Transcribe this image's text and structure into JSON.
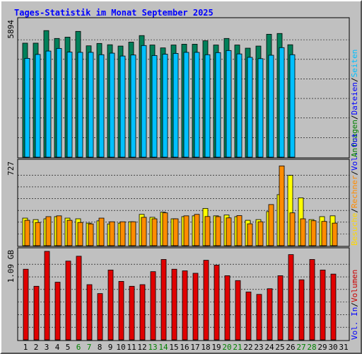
{
  "chart_data": {
    "type": "bar",
    "title": "Tages-Statistik im Monat September 2025",
    "categories": [
      "1",
      "2",
      "3",
      "4",
      "5",
      "6",
      "7",
      "8",
      "9",
      "10",
      "11",
      "12",
      "13",
      "14",
      "15",
      "16",
      "17",
      "18",
      "19",
      "20",
      "21",
      "22",
      "23",
      "24",
      "25",
      "26",
      "27",
      "28",
      "29",
      "30",
      "31"
    ],
    "weekend_days": [
      "6",
      "7",
      "13",
      "14",
      "20",
      "21",
      "27",
      "28"
    ],
    "x_colors": {
      "weekday": "#000000",
      "weekend": "#008000"
    },
    "panels": [
      {
        "id": "top",
        "ylabel": "5894",
        "ylim": [
          0,
          5894
        ],
        "series": [
          {
            "name": "Anfragen",
            "color": "#00805a",
            "values": [
              4944,
              4944,
              5489,
              5148,
              5205,
              5455,
              4829,
              4932,
              4875,
              4818,
              4989,
              5273,
              4864,
              4739,
              4864,
              4898,
              4898,
              5046,
              4864,
              5148,
              4864,
              4727,
              4818,
              5330,
              5364,
              4875,
              null,
              null,
              null,
              null,
              null
            ]
          },
          {
            "name": "Dateien",
            "color": "#00c0ff",
            "values": [
              4284,
              4454,
              4602,
              4716,
              4556,
              4545,
              4545,
              4443,
              4511,
              4386,
              4431,
              4841,
              4409,
              4466,
              4500,
              4545,
              4545,
              4443,
              4534,
              4625,
              4477,
              4329,
              4272,
              4420,
              4750,
              4443,
              null,
              null,
              null,
              null,
              null
            ]
          },
          {
            "name": "Seiten",
            "color": "#00ffff",
            "values": [
              null,
              null,
              null,
              null,
              null,
              null,
              null,
              null,
              null,
              null,
              null,
              null,
              null,
              null,
              null,
              null,
              null,
              null,
              null,
              null,
              null,
              null,
              null,
              null,
              null,
              null,
              null,
              null,
              null,
              null,
              null
            ]
          }
        ]
      },
      {
        "id": "middle",
        "ylabel": "727",
        "ylim": [
          0,
          727
        ],
        "series": [
          {
            "name": "Besuche",
            "color": "#ffff00",
            "values": [
              242,
              229,
              236,
              255,
              242,
              236,
              198,
              218,
              191,
              198,
              210,
              275,
              249,
              294,
              236,
              255,
              262,
              327,
              262,
              269,
              255,
              223,
              229,
              299,
              448,
              617,
              420,
              229,
              255,
              262,
              null
            ]
          },
          {
            "name": "Rechner",
            "color": "#ff8c00",
            "values": [
              223,
              204,
              255,
              262,
              223,
              204,
              191,
              242,
              210,
              210,
              210,
              249,
              236,
              288,
              236,
              262,
              275,
              256,
              255,
              244,
              264,
              192,
              210,
              361,
              700,
              288,
              236,
              219,
              213,
              198,
              null
            ]
          },
          {
            "name": "Out",
            "color": "#ff0000",
            "values": []
          }
        ]
      },
      {
        "id": "bottom",
        "ylabel": "1.09 GB",
        "ylim": [
          0,
          1.09
        ],
        "series": [
          {
            "name": "Volumen",
            "color": "#e00000",
            "values": [
              0.87,
              0.66,
              1.09,
              0.71,
              0.97,
              1.03,
              0.68,
              0.57,
              0.86,
              0.72,
              0.66,
              0.68,
              0.84,
              0.99,
              0.87,
              0.85,
              0.82,
              0.98,
              0.92,
              0.79,
              0.73,
              0.59,
              0.56,
              0.63,
              0.79,
              1.05,
              0.74,
              0.99,
              0.86,
              0.81,
              null
            ]
          }
        ]
      }
    ],
    "right_labels": {
      "top": [
        {
          "text": "Anfragen",
          "color": "#008000"
        },
        {
          "text": "/",
          "color": "#000000"
        },
        {
          "text": "Dateien",
          "color": "#0000ff"
        },
        {
          "text": "/",
          "color": "#000000"
        },
        {
          "text": "Seiten",
          "color": "#00c0ff"
        }
      ],
      "middle": [
        {
          "text": "Besuche",
          "color": "#ffd700"
        },
        {
          "text": "/",
          "color": "#000000"
        },
        {
          "text": "Rechner",
          "color": "#ff8c00"
        },
        {
          "text": "/",
          "color": "#000000"
        },
        {
          "text": "Vol. Out",
          "color": "#0000ff"
        }
      ],
      "bottom": [
        {
          "text": "Vol. In",
          "color": "#0000ff"
        },
        {
          "text": "/",
          "color": "#000000"
        },
        {
          "text": "Volumen",
          "color": "#cc0000"
        }
      ]
    }
  }
}
